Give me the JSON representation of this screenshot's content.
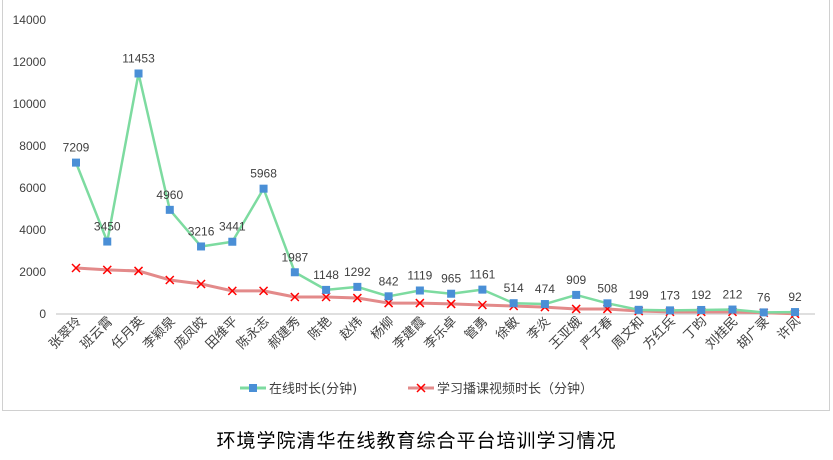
{
  "chart_data": {
    "type": "line",
    "title": "环境学院清华在线教育综合平台培训学习情况",
    "xlabel": "",
    "ylabel": "",
    "ylim": [
      0,
      14000
    ],
    "yticks": [
      0,
      2000,
      4000,
      6000,
      8000,
      10000,
      12000,
      14000
    ],
    "grid": false,
    "legend_position": "bottom",
    "categories": [
      "张翠玲",
      "班云霄",
      "任月英",
      "李颖泉",
      "庞凤皎",
      "田维平",
      "陈永志",
      "郝建秀",
      "陈艳",
      "赵炜",
      "杨柳",
      "李建霞",
      "李乐卓",
      "管勇",
      "徐敏",
      "李炎",
      "王亚娥",
      "严子春",
      "周文和",
      "方红兵",
      "丁昀",
      "刘桂民",
      "胡广录",
      "许凤"
    ],
    "series": [
      {
        "name": "在线时长(分钟)",
        "color": "#7ddba0",
        "marker_color": "#4a8fd6",
        "marker": "square",
        "show_labels": true,
        "values": [
          7209,
          3450,
          11453,
          4960,
          3216,
          3441,
          5968,
          1987,
          1148,
          1292,
          842,
          1119,
          965,
          1161,
          514,
          474,
          909,
          508,
          199,
          173,
          192,
          212,
          76,
          92
        ]
      },
      {
        "name": "学习播课视频时长（分钟）",
        "color": "#e38a8a",
        "marker_color": "#ff0000",
        "marker": "x",
        "show_labels": false,
        "values": [
          2190,
          2100,
          2050,
          1620,
          1430,
          1100,
          1100,
          810,
          810,
          760,
          520,
          520,
          480,
          430,
          380,
          330,
          240,
          240,
          140,
          100,
          100,
          100,
          60,
          10
        ]
      }
    ]
  }
}
